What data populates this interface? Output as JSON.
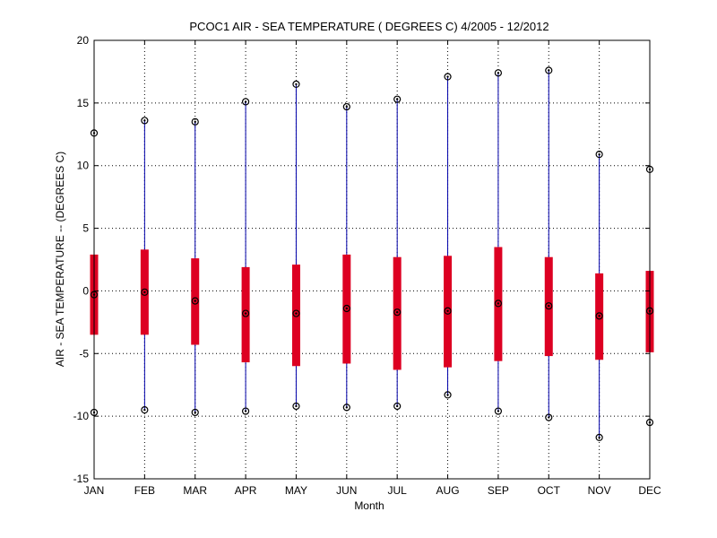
{
  "chart_data": {
    "type": "box",
    "title": "PCOC1  AIR - SEA TEMPERATURE ( DEGREES C) 4/2005 - 12/2012",
    "xlabel": "Month",
    "ylabel": "AIR - SEA TEMPERATURE -- (DEGREES C)",
    "ylim": [
      -15,
      20
    ],
    "yticks": [
      -15,
      -10,
      -5,
      0,
      5,
      10,
      15,
      20
    ],
    "ytick_labels": [
      "-15",
      "-10",
      "-5",
      "0",
      "5",
      "10",
      "15",
      "20"
    ],
    "grid": true,
    "categories": [
      "JAN",
      "FEB",
      "MAR",
      "APR",
      "MAY",
      "JUN",
      "JUL",
      "AUG",
      "SEP",
      "OCT",
      "NOV",
      "DEC"
    ],
    "series": [
      {
        "min": -9.7,
        "q1": -3.5,
        "median": -0.3,
        "q3": 2.9,
        "max": 12.6
      },
      {
        "min": -9.5,
        "q1": -3.5,
        "median": -0.1,
        "q3": 3.3,
        "max": 13.6
      },
      {
        "min": -9.7,
        "q1": -4.3,
        "median": -0.8,
        "q3": 2.6,
        "max": 13.5
      },
      {
        "min": -9.6,
        "q1": -5.7,
        "median": -1.8,
        "q3": 1.9,
        "max": 15.1
      },
      {
        "min": -9.2,
        "q1": -6.0,
        "median": -1.8,
        "q3": 2.1,
        "max": 16.5
      },
      {
        "min": -9.3,
        "q1": -5.8,
        "median": -1.4,
        "q3": 2.9,
        "max": 14.7
      },
      {
        "min": -9.2,
        "q1": -6.3,
        "median": -1.7,
        "q3": 2.7,
        "max": 15.3
      },
      {
        "min": -8.3,
        "q1": -6.1,
        "median": -1.6,
        "q3": 2.8,
        "max": 17.1
      },
      {
        "min": -9.6,
        "q1": -5.6,
        "median": -1.0,
        "q3": 3.5,
        "max": 17.4
      },
      {
        "min": -10.1,
        "q1": -5.2,
        "median": -1.2,
        "q3": 2.7,
        "max": 17.6
      },
      {
        "min": -11.7,
        "q1": -5.5,
        "median": -2.0,
        "q3": 1.4,
        "max": 10.9
      },
      {
        "min": -10.5,
        "q1": -4.9,
        "median": -1.6,
        "q3": 1.6,
        "max": 9.7
      }
    ],
    "colors": {
      "whisker": "#0000aa",
      "box": "#dd0022",
      "marker": "#000000"
    }
  }
}
